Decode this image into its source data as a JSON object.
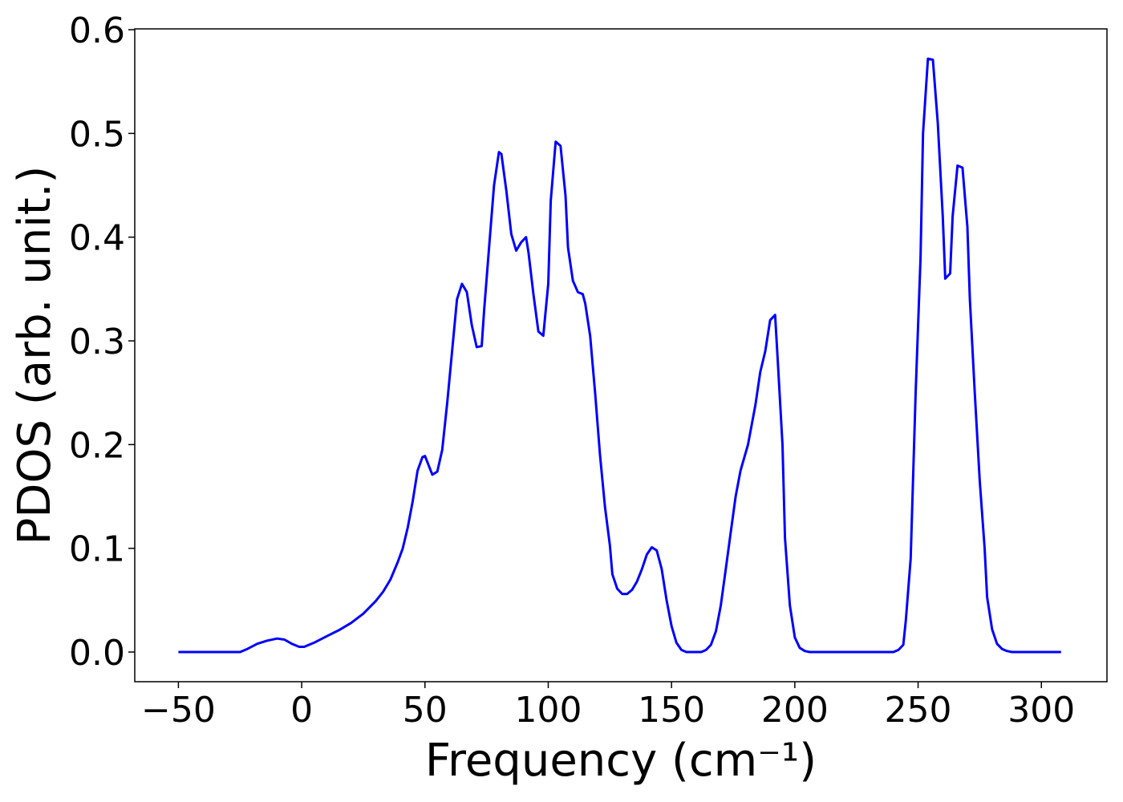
{
  "chart_data": {
    "type": "line",
    "x_label": "Frequency (cm⁻¹)",
    "y_label": "PDOS (arb. unit.)",
    "x": [
      -50,
      -25,
      -22,
      -18,
      -14,
      -10,
      -7,
      -4,
      -1,
      1,
      5,
      10,
      15,
      20,
      25,
      30,
      33,
      36,
      39,
      41,
      43,
      45,
      46,
      47,
      49,
      50,
      53,
      55,
      57,
      59,
      61,
      63,
      65,
      67,
      69,
      71,
      73,
      74,
      76,
      78,
      80,
      81,
      83,
      85,
      87,
      89,
      91,
      92,
      94,
      96,
      98,
      100,
      101,
      103,
      105,
      107,
      108,
      110,
      112,
      114,
      115,
      117,
      119,
      121,
      123,
      125,
      126,
      128,
      130,
      132,
      134,
      136,
      138,
      140,
      142,
      144,
      146,
      148,
      150,
      152,
      154,
      156,
      162,
      164,
      166,
      168,
      170,
      172,
      174,
      176,
      178,
      181,
      184,
      186,
      188,
      190,
      192,
      193,
      195,
      196,
      198,
      200,
      202,
      204,
      206,
      240,
      242,
      244,
      245,
      247,
      249,
      251,
      252,
      254,
      256,
      258,
      260,
      261,
      263,
      264,
      266,
      268,
      270,
      271,
      273,
      275,
      277,
      278,
      280,
      282,
      284,
      286,
      288,
      308
    ],
    "series": [
      {
        "name": "PDOS",
        "color": "#0000ff",
        "values": [
          0,
          0,
          0.003,
          0.008,
          0.011,
          0.013,
          0.012,
          0.008,
          0.005,
          0.005,
          0.009,
          0.015,
          0.021,
          0.028,
          0.037,
          0.049,
          0.058,
          0.07,
          0.087,
          0.1,
          0.12,
          0.145,
          0.16,
          0.175,
          0.188,
          0.189,
          0.171,
          0.174,
          0.195,
          0.24,
          0.29,
          0.34,
          0.355,
          0.347,
          0.315,
          0.294,
          0.295,
          0.33,
          0.39,
          0.45,
          0.482,
          0.48,
          0.445,
          0.403,
          0.387,
          0.395,
          0.4,
          0.385,
          0.345,
          0.309,
          0.305,
          0.355,
          0.435,
          0.492,
          0.488,
          0.44,
          0.39,
          0.358,
          0.347,
          0.345,
          0.336,
          0.305,
          0.25,
          0.19,
          0.14,
          0.103,
          0.075,
          0.061,
          0.056,
          0.056,
          0.06,
          0.068,
          0.08,
          0.094,
          0.101,
          0.098,
          0.08,
          0.05,
          0.025,
          0.009,
          0.002,
          0,
          0,
          0.002,
          0.007,
          0.02,
          0.045,
          0.08,
          0.115,
          0.15,
          0.175,
          0.2,
          0.238,
          0.27,
          0.29,
          0.32,
          0.325,
          0.285,
          0.2,
          0.11,
          0.045,
          0.014,
          0.004,
          0.001,
          0,
          0,
          0.002,
          0.007,
          0.03,
          0.09,
          0.25,
          0.38,
          0.5,
          0.572,
          0.571,
          0.51,
          0.42,
          0.36,
          0.365,
          0.42,
          0.469,
          0.467,
          0.41,
          0.34,
          0.25,
          0.165,
          0.1,
          0.053,
          0.022,
          0.008,
          0.003,
          0.001,
          0,
          0
        ]
      }
    ],
    "xlim": [
      -67.7,
      326.6
    ],
    "ylim": [
      -0.0286,
      0.6008
    ],
    "xticks": [
      {
        "value": -50,
        "label": "−50"
      },
      0,
      50,
      100,
      150,
      200,
      250,
      300
    ],
    "yticks": [
      {
        "value": 0,
        "label": "0.0"
      },
      0.1,
      0.2,
      0.3,
      0.4,
      0.5,
      0.6
    ]
  }
}
